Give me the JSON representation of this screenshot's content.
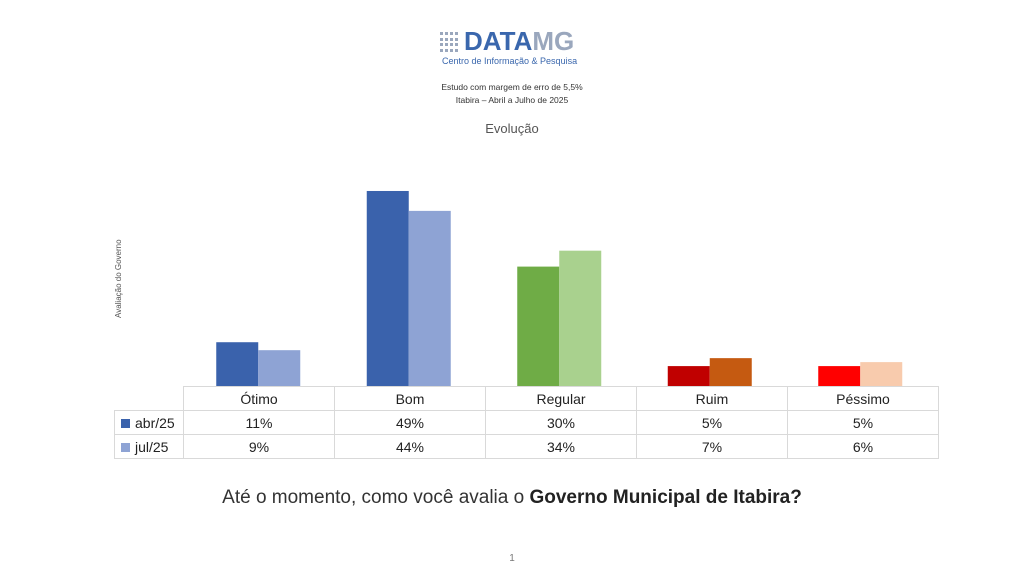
{
  "logo": {
    "brand_part1": "DATA",
    "brand_part2": "MG",
    "subtitle": "Centro de Informação & Pesquisa",
    "icon": "dot-grid-icon",
    "colors": {
      "primary": "#3a67ad",
      "secondary": "#9aa7bd"
    }
  },
  "header": {
    "study_line1": "Estudo com margem  de erro de 5,5%",
    "study_line2": "Itabira – Abril a Julho de 2025"
  },
  "chart_data": {
    "type": "bar",
    "title": "Evolução",
    "ylabel": "Avaliação do Governo",
    "xlabel": "",
    "ylim": [
      0,
      55
    ],
    "grid": false,
    "legend": "table-bottom-left",
    "categories": [
      "Ótimo",
      "Bom",
      "Regular",
      "Ruim",
      "Péssimo"
    ],
    "series": [
      {
        "name": "abr/25",
        "values": [
          11,
          49,
          30,
          5,
          5
        ],
        "labels": [
          "11%",
          "49%",
          "30%",
          "5%",
          "5%"
        ],
        "colors": [
          "#3a62ac",
          "#3a62ac",
          "#6fac46",
          "#c00000",
          "#ff0000"
        ],
        "legend_color": "#3a62ac"
      },
      {
        "name": "jul/25",
        "values": [
          9,
          44,
          34,
          7,
          6
        ],
        "labels": [
          "9%",
          "44%",
          "34%",
          "7%",
          "6%"
        ],
        "colors": [
          "#8ea3d4",
          "#8ea3d4",
          "#a9d18e",
          "#c55a11",
          "#f8cbad"
        ],
        "legend_color": "#8ea3d4"
      }
    ]
  },
  "footer": {
    "question_prefix": "Até o momento, como você avalia o ",
    "question_bold": "Governo Municipal de Itabira?",
    "page_number": "1"
  }
}
